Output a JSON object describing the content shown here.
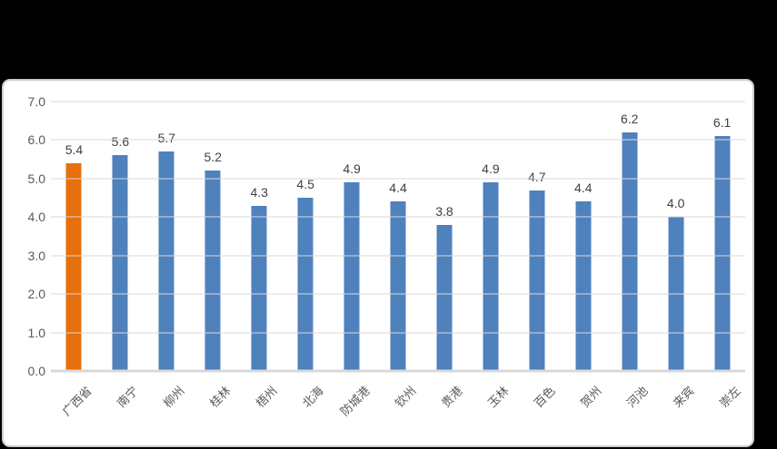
{
  "page": {
    "background_color": "#000000",
    "panel_background": "#ffffff",
    "panel_border_color": "#cbcbcb"
  },
  "chart_data": {
    "type": "bar",
    "title": "",
    "categories": [
      "广西省",
      "南宁",
      "柳州",
      "桂林",
      "梧州",
      "北海",
      "防城港",
      "钦州",
      "贵港",
      "玉林",
      "百色",
      "贺州",
      "河池",
      "来宾",
      "崇左"
    ],
    "values": [
      5.4,
      5.6,
      5.7,
      5.2,
      4.3,
      4.5,
      4.9,
      4.4,
      3.8,
      4.9,
      4.7,
      4.4,
      6.2,
      4.0,
      6.1
    ],
    "point_labels": [
      "5.4",
      "5.6",
      "5.7",
      "5.2",
      "4.3",
      "4.5",
      "4.9",
      "4.4",
      "3.8",
      "4.9",
      "4.7",
      "4.4",
      "6.2",
      "4.0",
      "6.1"
    ],
    "y_ticks": [
      "7.0",
      "6.0",
      "5.0",
      "4.0",
      "3.0",
      "2.0",
      "1.0",
      "0.0"
    ],
    "ylim": [
      0,
      7
    ],
    "xlabel": "",
    "ylabel": "",
    "grid": true,
    "legend": false,
    "bar_color": "#4f81bd",
    "highlight_color": "#e6700c",
    "highlight_index": 0,
    "gridline_color": "#d9d9d9",
    "axis_label_color": "#595959",
    "data_label_color": "#404040"
  }
}
